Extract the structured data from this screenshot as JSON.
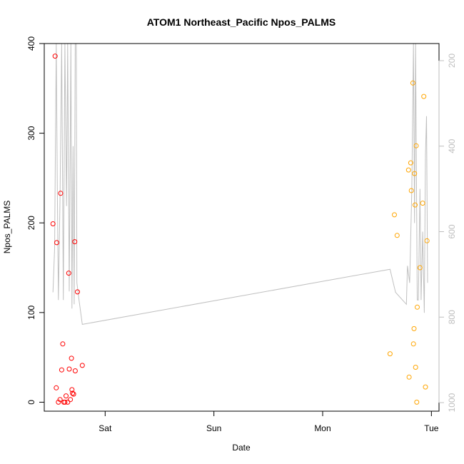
{
  "chart_data": {
    "type": "scatter",
    "title": "ATOM1 Northeast_Pacific Npos_PALMS",
    "xlabel": "Date",
    "ylabel": "Npos_PALMS",
    "x_ticks": [
      {
        "label": "Sat",
        "day": 1.0
      },
      {
        "label": "Sun",
        "day": 2.0
      },
      {
        "label": "Mon",
        "day": 3.0
      },
      {
        "label": "Tue",
        "day": 4.0
      }
    ],
    "xlim_days": [
      0.44,
      4.07
    ],
    "ylim": [
      -10,
      400
    ],
    "y_ticks": [
      0,
      100,
      200,
      300,
      400
    ],
    "right_axis": {
      "ticks": [
        200,
        400,
        600,
        800,
        1000
      ],
      "range_top": 160,
      "range_bottom": 1020,
      "color": "#bebebe",
      "reversed": true
    },
    "series": [
      {
        "color": "#ff0000",
        "points": [
          {
            "day": 0.52,
            "y": 199
          },
          {
            "day": 0.54,
            "y": 386
          },
          {
            "day": 0.55,
            "y": 16
          },
          {
            "day": 0.555,
            "y": 178
          },
          {
            "day": 0.57,
            "y": 0
          },
          {
            "day": 0.585,
            "y": 3
          },
          {
            "day": 0.59,
            "y": 233
          },
          {
            "day": 0.6,
            "y": 36
          },
          {
            "day": 0.61,
            "y": 65
          },
          {
            "day": 0.62,
            "y": 0
          },
          {
            "day": 0.63,
            "y": 0
          },
          {
            "day": 0.64,
            "y": 7
          },
          {
            "day": 0.655,
            "y": 0
          },
          {
            "day": 0.665,
            "y": 144
          },
          {
            "day": 0.67,
            "y": 37
          },
          {
            "day": 0.68,
            "y": 3
          },
          {
            "day": 0.69,
            "y": 49
          },
          {
            "day": 0.695,
            "y": 14
          },
          {
            "day": 0.7,
            "y": 10
          },
          {
            "day": 0.71,
            "y": 9
          },
          {
            "day": 0.72,
            "y": 179
          },
          {
            "day": 0.725,
            "y": 35
          },
          {
            "day": 0.745,
            "y": 123
          },
          {
            "day": 0.79,
            "y": 41
          }
        ]
      },
      {
        "color": "#ffa500",
        "points": [
          {
            "day": 3.62,
            "y": 54
          },
          {
            "day": 3.66,
            "y": 209
          },
          {
            "day": 3.685,
            "y": 186
          },
          {
            "day": 3.79,
            "y": 259
          },
          {
            "day": 3.795,
            "y": 28
          },
          {
            "day": 3.81,
            "y": 267
          },
          {
            "day": 3.815,
            "y": 236
          },
          {
            "day": 3.83,
            "y": 356
          },
          {
            "day": 3.835,
            "y": 65
          },
          {
            "day": 3.84,
            "y": 82
          },
          {
            "day": 3.845,
            "y": 255
          },
          {
            "day": 3.85,
            "y": 220
          },
          {
            "day": 3.855,
            "y": 39
          },
          {
            "day": 3.86,
            "y": 286
          },
          {
            "day": 3.865,
            "y": 0
          },
          {
            "day": 3.87,
            "y": 106
          },
          {
            "day": 3.895,
            "y": 150
          },
          {
            "day": 3.92,
            "y": 222
          },
          {
            "day": 3.93,
            "y": 341
          },
          {
            "day": 3.945,
            "y": 17
          },
          {
            "day": 3.96,
            "y": 180
          }
        ]
      }
    ],
    "depth_line": {
      "color": "#c0c0c0",
      "points": [
        {
          "day": 0.52,
          "depth": 742
        },
        {
          "day": 0.535,
          "depth": 640
        },
        {
          "day": 0.55,
          "depth": 160
        },
        {
          "day": 0.56,
          "depth": 500
        },
        {
          "day": 0.57,
          "depth": 760
        },
        {
          "day": 0.585,
          "depth": 520
        },
        {
          "day": 0.6,
          "depth": 160
        },
        {
          "day": 0.615,
          "depth": 760
        },
        {
          "day": 0.63,
          "depth": 160
        },
        {
          "day": 0.645,
          "depth": 540
        },
        {
          "day": 0.655,
          "depth": 160
        },
        {
          "day": 0.67,
          "depth": 740
        },
        {
          "day": 0.685,
          "depth": 160
        },
        {
          "day": 0.695,
          "depth": 780
        },
        {
          "day": 0.705,
          "depth": 400
        },
        {
          "day": 0.715,
          "depth": 770
        },
        {
          "day": 0.725,
          "depth": 160
        },
        {
          "day": 0.735,
          "depth": 160
        },
        {
          "day": 0.74,
          "depth": 720
        },
        {
          "day": 0.76,
          "depth": 760
        },
        {
          "day": 0.79,
          "depth": 817
        },
        {
          "day": 3.62,
          "depth": 688
        },
        {
          "day": 3.67,
          "depth": 742
        },
        {
          "day": 3.77,
          "depth": 770
        },
        {
          "day": 3.78,
          "depth": 680
        },
        {
          "day": 3.8,
          "depth": 720
        },
        {
          "day": 3.82,
          "depth": 500
        },
        {
          "day": 3.835,
          "depth": 160
        },
        {
          "day": 3.845,
          "depth": 580
        },
        {
          "day": 3.855,
          "depth": 160
        },
        {
          "day": 3.87,
          "depth": 760
        },
        {
          "day": 3.88,
          "depth": 760
        },
        {
          "day": 3.895,
          "depth": 500
        },
        {
          "day": 3.905,
          "depth": 760
        },
        {
          "day": 3.92,
          "depth": 600
        },
        {
          "day": 3.935,
          "depth": 790
        },
        {
          "day": 3.945,
          "depth": 420
        },
        {
          "day": 3.955,
          "depth": 330
        },
        {
          "day": 3.965,
          "depth": 720
        }
      ]
    }
  }
}
